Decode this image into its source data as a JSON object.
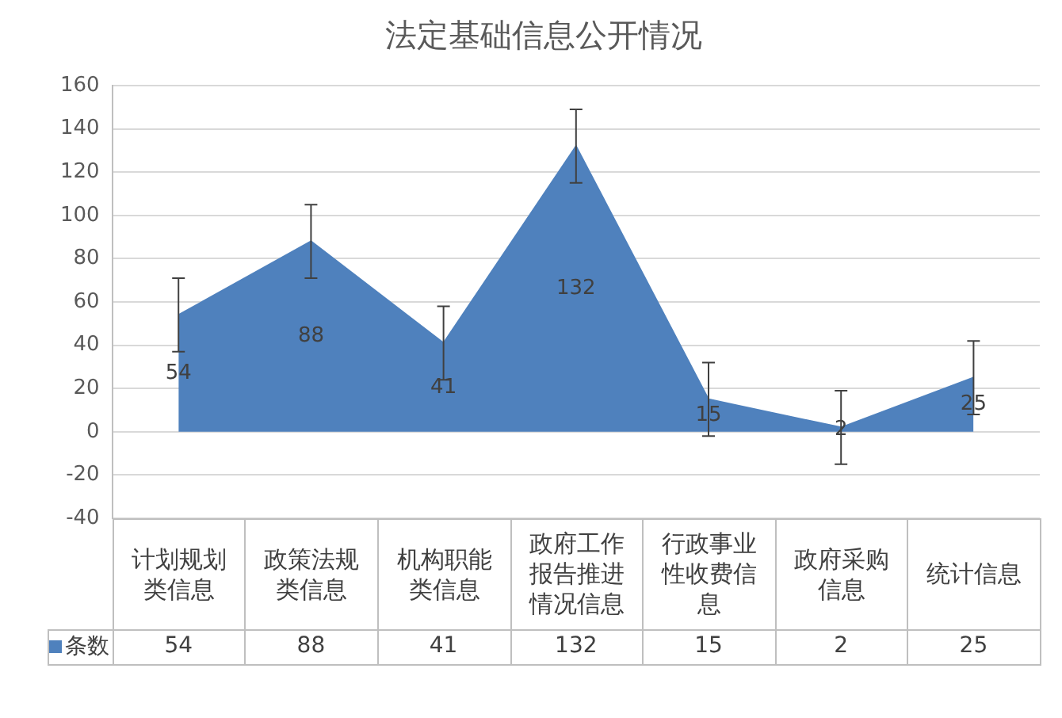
{
  "chart_data": {
    "type": "area",
    "title": "法定基础信息公开情况",
    "categories": [
      "计划规划类信息",
      "政策法规类信息",
      "机构职能类信息",
      "政府工作报告推进情况信息",
      "行政事业性收费信息",
      "政府采购信息",
      "统计信息"
    ],
    "series": [
      {
        "name": "条数",
        "color": "#4f81bd",
        "values": [
          54,
          88,
          41,
          132,
          15,
          2,
          25
        ],
        "errors": [
          17,
          17,
          17,
          17,
          17,
          17,
          17
        ]
      }
    ],
    "annotations": [
      "54",
      "88",
      "41",
      "132",
      "15",
      "2",
      "25"
    ],
    "ylim": [
      -40,
      160
    ],
    "yticks": [
      -40,
      -20,
      0,
      20,
      40,
      60,
      80,
      100,
      120,
      140,
      160
    ],
    "grid": "y",
    "legend": "bottom",
    "data_labels": true
  }
}
